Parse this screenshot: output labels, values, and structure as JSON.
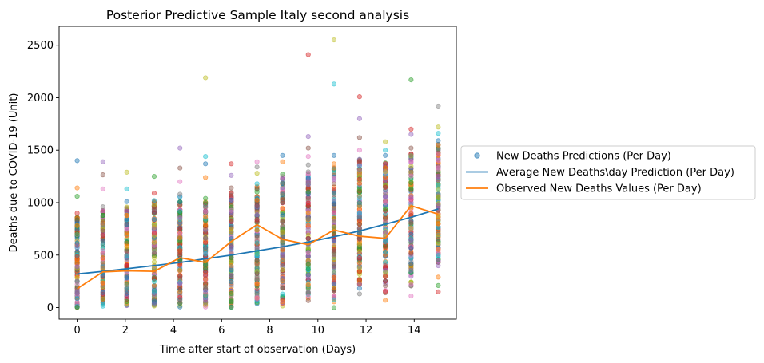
{
  "chart_data": {
    "type": "scatter",
    "title": "Posterior Predictive Sample Italy second analysis",
    "xlabel": "Time after start of observation (Days)",
    "ylabel": "Deaths due to COVID-19 (Unit)",
    "xlim": [
      -0.75,
      15.75
    ],
    "ylim": [
      -110,
      2680
    ],
    "xticks": [
      0,
      2,
      4,
      6,
      8,
      10,
      12,
      14
    ],
    "yticks": [
      0,
      500,
      1000,
      1500,
      2000,
      2500
    ],
    "grid": false,
    "legend_position": "right-outside",
    "legend": [
      "New Deaths Predictions (Per Day)",
      "Average New Deaths\\day Prediction (Per Day)",
      "Observed New Deaths Values (Per Day)"
    ],
    "series": [
      {
        "name": "New Deaths Predictions (Per Day)",
        "kind": "scatter",
        "color": "#1f77b4",
        "alpha": 0.45,
        "points": [
          [
            0,
            1400
          ],
          [
            0,
            1140
          ],
          [
            0,
            1060
          ],
          [
            0,
            900
          ],
          [
            1.07,
            1390
          ],
          [
            1.07,
            1265
          ],
          [
            1.07,
            1130
          ],
          [
            1.07,
            960
          ],
          [
            2.06,
            1290
          ],
          [
            2.06,
            1130
          ],
          [
            2.06,
            1010
          ],
          [
            2.06,
            880
          ],
          [
            3.2,
            1250
          ],
          [
            3.2,
            1090
          ],
          [
            4.27,
            1520
          ],
          [
            4.27,
            1330
          ],
          [
            4.27,
            1200
          ],
          [
            4.27,
            1080
          ],
          [
            5.33,
            2190
          ],
          [
            5.33,
            1440
          ],
          [
            5.33,
            1370
          ],
          [
            5.33,
            1240
          ],
          [
            5.33,
            1040
          ],
          [
            6.4,
            1370
          ],
          [
            6.4,
            1260
          ],
          [
            6.4,
            1140
          ],
          [
            7.47,
            1390
          ],
          [
            7.47,
            1340
          ],
          [
            7.47,
            1280
          ],
          [
            7.47,
            1180
          ],
          [
            8.53,
            1450
          ],
          [
            8.53,
            1390
          ],
          [
            8.53,
            1270
          ],
          [
            9.6,
            2410
          ],
          [
            9.6,
            1630
          ],
          [
            9.6,
            1520
          ],
          [
            9.6,
            1440
          ],
          [
            9.6,
            1360
          ],
          [
            10.67,
            2550
          ],
          [
            10.67,
            2130
          ],
          [
            10.67,
            1450
          ],
          [
            10.67,
            1370
          ],
          [
            10.67,
            0
          ],
          [
            11.73,
            2010
          ],
          [
            11.73,
            1800
          ],
          [
            11.73,
            1620
          ],
          [
            11.73,
            1500
          ],
          [
            11.73,
            130
          ],
          [
            12.8,
            1580
          ],
          [
            12.8,
            1500
          ],
          [
            12.8,
            1450
          ],
          [
            12.8,
            70
          ],
          [
            13.87,
            2170
          ],
          [
            13.87,
            1700
          ],
          [
            13.87,
            1650
          ],
          [
            13.87,
            1520
          ],
          [
            13.87,
            110
          ],
          [
            15,
            1920
          ],
          [
            15,
            1720
          ],
          [
            15,
            1660
          ],
          [
            15,
            1590
          ],
          [
            15,
            290
          ],
          [
            15,
            210
          ],
          [
            15,
            150
          ]
        ]
      },
      {
        "name": "Average New Deaths\\day Prediction (Per Day)",
        "kind": "line",
        "color": "#1f77b4",
        "x": [
          0,
          1.07,
          2.06,
          3.2,
          4.27,
          5.33,
          6.4,
          7.47,
          8.53,
          9.6,
          10.67,
          11.73,
          12.8,
          13.87,
          15
        ],
        "y": [
          320,
          345,
          370,
          400,
          430,
          465,
          500,
          540,
          580,
          625,
          675,
          730,
          795,
          860,
          940
        ]
      },
      {
        "name": "Observed New Deaths Values (Per Day)",
        "kind": "line",
        "color": "#ff7f0e",
        "x": [
          0,
          1.07,
          2.06,
          3.2,
          4.27,
          5.33,
          6.4,
          7.47,
          8.53,
          9.6,
          10.67,
          11.73,
          12.8,
          13.87,
          15
        ],
        "y": [
          180,
          340,
          350,
          345,
          475,
          430,
          630,
          790,
          650,
          600,
          740,
          680,
          660,
          970,
          890
        ]
      }
    ],
    "column_ranges": [
      {
        "x": 0,
        "min": 0,
        "max": 860
      },
      {
        "x": 1.07,
        "min": 5,
        "max": 930
      },
      {
        "x": 2.06,
        "min": 5,
        "max": 960
      },
      {
        "x": 3.2,
        "min": 10,
        "max": 1050
      },
      {
        "x": 4.27,
        "min": 5,
        "max": 1060
      },
      {
        "x": 5.33,
        "min": 5,
        "max": 1020
      },
      {
        "x": 6.4,
        "min": 0,
        "max": 1100
      },
      {
        "x": 7.47,
        "min": 10,
        "max": 1160
      },
      {
        "x": 8.53,
        "min": 10,
        "max": 1250
      },
      {
        "x": 9.6,
        "min": 60,
        "max": 1300
      },
      {
        "x": 10.67,
        "min": 50,
        "max": 1330
      },
      {
        "x": 11.73,
        "min": 180,
        "max": 1420
      },
      {
        "x": 12.8,
        "min": 140,
        "max": 1390
      },
      {
        "x": 13.87,
        "min": 200,
        "max": 1470
      },
      {
        "x": 15,
        "min": 350,
        "max": 1560
      }
    ],
    "point_palette": [
      "#1f77b4",
      "#ff7f0e",
      "#2ca02c",
      "#d62728",
      "#9467bd",
      "#8c564b",
      "#e377c2",
      "#7f7f7f",
      "#bcbd22",
      "#17becf"
    ]
  }
}
